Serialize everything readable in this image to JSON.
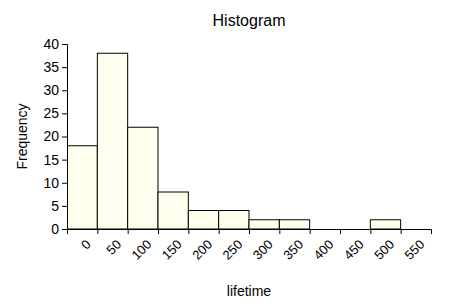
{
  "chart_data": {
    "type": "histogram",
    "title": "Histogram",
    "x_label": "lifetime",
    "y_label": "Frequency",
    "bins": [
      0,
      50,
      100,
      150,
      200,
      250,
      300,
      350,
      400,
      450,
      500,
      550
    ],
    "values": [
      18,
      38,
      22,
      8,
      4,
      4,
      2,
      2,
      0,
      0,
      2
    ],
    "color": "#ffffee",
    "xlim": [
      0,
      600
    ],
    "xticks": [
      0,
      50,
      100,
      150,
      200,
      250,
      300,
      350,
      400,
      450,
      500,
      550
    ],
    "ylim": [
      0,
      40
    ],
    "yticks": [
      0,
      5,
      10,
      15,
      20,
      25,
      30,
      35,
      40
    ],
    "grid": false
  }
}
